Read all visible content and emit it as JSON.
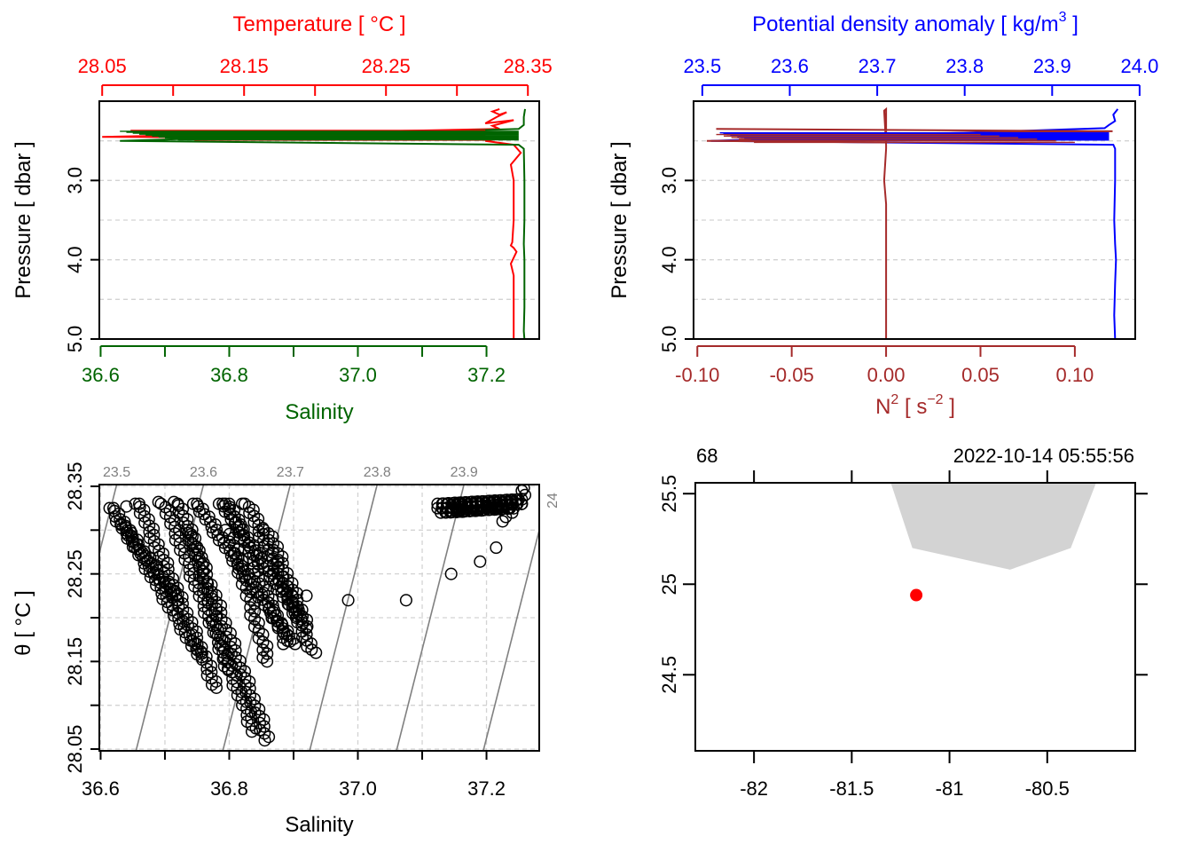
{
  "colors": {
    "temperature": "#ff0000",
    "salinity": "#006400",
    "density": "#0000ff",
    "n2": "#a52a2a",
    "isopycnal": "#808080",
    "coast": "#d3d3d3",
    "station": "#ff0000",
    "grid": "#d3d3d3"
  },
  "chart_data": [
    {
      "id": "profile-ts",
      "type": "line",
      "ylabel": "Pressure [ dbar ]",
      "ylim": [
        5.0,
        2.0
      ],
      "yticks": [
        3.0,
        4.0,
        5.0
      ],
      "ytick_labels": [
        "3.0",
        "4.0",
        "5.0"
      ],
      "ygrid": [
        2.5,
        3.0,
        3.5,
        4.0,
        4.5,
        5.0
      ],
      "top_axis": {
        "label": "Temperature [ °C ]",
        "ticks": [
          28.05,
          28.15,
          28.25,
          28.35
        ],
        "tick_labels": [
          "28.05",
          "28.15",
          "28.25",
          "28.35"
        ],
        "minor_ticks": [
          28.1,
          28.2,
          28.3
        ],
        "range": [
          28.048,
          28.358
        ]
      },
      "bottom_axis": {
        "label": "Salinity",
        "ticks": [
          36.6,
          36.8,
          37.0,
          37.2
        ],
        "tick_labels": [
          "36.6",
          "36.8",
          "37.0",
          "37.2"
        ],
        "minor_ticks": [
          36.7,
          36.9,
          37.1
        ],
        "range": [
          36.598,
          37.282
        ]
      },
      "series": [
        {
          "role": "temperature",
          "x": [
            28.33,
            28.325,
            28.33,
            28.335,
            28.328,
            28.32,
            28.34,
            28.325,
            28.33,
            28.05,
            28.33,
            28.32,
            28.34,
            28.345,
            28.338,
            28.34,
            28.34,
            28.339,
            28.338,
            28.34,
            28.342,
            28.338,
            28.34,
            28.34,
            28.34,
            28.34,
            28.34,
            28.34
          ],
          "y": [
            2.1,
            2.13,
            2.17,
            2.14,
            2.2,
            2.28,
            2.24,
            2.31,
            2.35,
            2.45,
            2.47,
            2.5,
            2.55,
            2.65,
            2.8,
            3.0,
            3.5,
            3.78,
            3.82,
            3.85,
            3.9,
            4.05,
            4.2,
            4.5,
            4.7,
            4.85,
            4.95,
            5.0
          ]
        },
        {
          "role": "salinity",
          "x": [
            37.26,
            37.258,
            37.258,
            37.25,
            36.63,
            37.25,
            37.258,
            37.259,
            37.259,
            37.258,
            37.259,
            37.259,
            37.259,
            37.258,
            37.259
          ],
          "y": [
            2.1,
            2.2,
            2.3,
            2.35,
            2.5,
            2.55,
            2.6,
            3.0,
            3.5,
            3.8,
            4.0,
            4.3,
            4.6,
            4.9,
            5.0
          ]
        }
      ]
    },
    {
      "id": "profile-density",
      "type": "line",
      "ylabel": "Pressure [ dbar ]",
      "ylim": [
        5.0,
        2.0
      ],
      "yticks": [
        3.0,
        4.0,
        5.0
      ],
      "ytick_labels": [
        "3.0",
        "4.0",
        "5.0"
      ],
      "ygrid": [
        2.5,
        3.0,
        3.5,
        4.0,
        4.5,
        5.0
      ],
      "top_axis": {
        "label_main": "Potential density anomaly [ kg/m",
        "label_sup": "3",
        "label_end": " ]",
        "ticks": [
          23.5,
          23.6,
          23.7,
          23.8,
          23.9,
          24.0
        ],
        "tick_labels": [
          "23.5",
          "23.6",
          "23.7",
          "23.8",
          "23.9",
          "24.0"
        ],
        "range": [
          23.49,
          23.995
        ]
      },
      "bottom_axis": {
        "label_main": "N",
        "label_sup": "2",
        "label_mid": " [ s",
        "label_sup2": "−2",
        "label_end": " ]",
        "ticks": [
          -0.1,
          -0.05,
          0.0,
          0.05,
          0.1
        ],
        "tick_labels": [
          "-0.10",
          "-0.05",
          "0.00",
          "0.05",
          "0.10"
        ],
        "range": [
          -0.102,
          0.132
        ]
      },
      "series": [
        {
          "role": "density",
          "x": [
            23.975,
            23.97,
            23.972,
            23.965,
            23.96,
            23.51,
            23.97,
            23.972,
            23.972,
            23.971,
            23.972,
            23.973,
            23.972,
            23.971,
            23.972
          ],
          "y": [
            2.1,
            2.17,
            2.25,
            2.3,
            2.34,
            2.5,
            2.55,
            2.6,
            3.0,
            3.5,
            3.8,
            4.0,
            4.3,
            4.7,
            5.0
          ]
        },
        {
          "role": "n2",
          "x": [
            -0.09,
            0.12,
            -0.08,
            0.11,
            -0.095,
            0.0,
            0.0,
            -0.001,
            0.0,
            0.0,
            -0.001,
            0.0,
            0.0,
            0.0,
            0.0,
            0.0,
            0.0
          ],
          "y": [
            2.35,
            2.38,
            2.43,
            2.46,
            2.5,
            2.52,
            2.1,
            2.12,
            2.55,
            2.6,
            3.0,
            3.3,
            3.6,
            4.0,
            4.4,
            4.8,
            5.0
          ]
        }
      ]
    },
    {
      "id": "ts-diagram",
      "type": "scatter",
      "xlabel": "Salinity",
      "ylabel_main": "θ",
      "ylabel_unit": " [ °C ]",
      "xlim": [
        36.598,
        37.282
      ],
      "ylim": [
        28.048,
        28.352
      ],
      "xticks": [
        36.6,
        36.8,
        37.0,
        37.2
      ],
      "xtick_labels": [
        "36.6",
        "36.8",
        "37.0",
        "37.2"
      ],
      "xminor": [
        36.7,
        36.9,
        37.1
      ],
      "yticks": [
        28.05,
        28.15,
        28.25,
        28.35
      ],
      "ytick_labels": [
        "28.05",
        "28.15",
        "28.25",
        "28.35"
      ],
      "yminor": [
        28.1,
        28.2,
        28.3
      ],
      "xgrid": [
        36.6,
        36.7,
        36.8,
        36.9,
        37.0,
        37.1,
        37.2
      ],
      "ygrid": [
        28.05,
        28.1,
        28.15,
        28.2,
        28.25,
        28.3,
        28.35
      ],
      "isopycnals": [
        {
          "label": "23.5",
          "s_bottom": 36.52,
          "s_top": 36.625
        },
        {
          "label": "23.6",
          "s_bottom": 36.655,
          "s_top": 36.76
        },
        {
          "label": "23.7",
          "s_bottom": 36.79,
          "s_top": 36.895
        },
        {
          "label": "23.8",
          "s_bottom": 36.925,
          "s_top": 37.03
        },
        {
          "label": "23.9",
          "s_bottom": 37.06,
          "s_top": 37.165
        },
        {
          "label": "24",
          "s_bottom": 37.195,
          "s_top": 37.3
        }
      ],
      "bands": [
        {
          "s0": 36.62,
          "t0": 28.325,
          "s1": 36.755,
          "t1": 28.155,
          "n": 55
        },
        {
          "s0": 36.66,
          "t0": 28.33,
          "s1": 36.78,
          "t1": 28.12,
          "n": 60
        },
        {
          "s0": 36.7,
          "t0": 28.33,
          "s1": 36.84,
          "t1": 28.07,
          "n": 70
        },
        {
          "s0": 36.72,
          "t0": 28.332,
          "s1": 36.86,
          "t1": 28.06,
          "n": 70
        },
        {
          "s0": 36.75,
          "t0": 28.33,
          "s1": 36.9,
          "t1": 28.17,
          "n": 55
        },
        {
          "s0": 36.79,
          "t0": 28.33,
          "s1": 36.91,
          "t1": 28.2,
          "n": 45
        },
        {
          "s0": 36.8,
          "t0": 28.33,
          "s1": 36.89,
          "t1": 28.17,
          "n": 45
        },
        {
          "s0": 36.83,
          "t0": 28.33,
          "s1": 36.93,
          "t1": 28.16,
          "n": 50
        },
        {
          "s0": 36.63,
          "t0": 28.31,
          "s1": 36.72,
          "t1": 28.22,
          "n": 35
        },
        {
          "s0": 36.74,
          "t0": 28.3,
          "s1": 36.8,
          "t1": 28.14,
          "n": 35
        },
        {
          "s0": 36.8,
          "t0": 28.3,
          "s1": 36.86,
          "t1": 28.15,
          "n": 35
        },
        {
          "s0": 36.86,
          "t0": 28.3,
          "s1": 36.92,
          "t1": 28.19,
          "n": 30
        },
        {
          "s0": 37.13,
          "t0": 28.325,
          "s1": 37.255,
          "t1": 28.33,
          "n": 60
        },
        {
          "s0": 37.13,
          "t0": 28.33,
          "s1": 37.25,
          "t1": 28.335,
          "n": 50
        },
        {
          "s0": 37.135,
          "t0": 28.32,
          "s1": 37.24,
          "t1": 28.325,
          "n": 40
        }
      ],
      "points": [
        {
          "s": 36.62,
          "t": 28.325
        },
        {
          "s": 36.64,
          "t": 28.327
        },
        {
          "s": 36.66,
          "t": 28.33
        },
        {
          "s": 36.69,
          "t": 28.332
        },
        {
          "s": 36.72,
          "t": 28.33
        },
        {
          "s": 36.75,
          "t": 28.33
        },
        {
          "s": 36.79,
          "t": 28.33
        },
        {
          "s": 36.8,
          "t": 28.33
        },
        {
          "s": 36.82,
          "t": 28.33
        },
        {
          "s": 36.92,
          "t": 28.225
        },
        {
          "s": 36.985,
          "t": 28.22
        },
        {
          "s": 37.075,
          "t": 28.22
        },
        {
          "s": 37.145,
          "t": 28.25
        },
        {
          "s": 37.19,
          "t": 28.264
        },
        {
          "s": 37.215,
          "t": 28.28
        },
        {
          "s": 37.225,
          "t": 28.31
        },
        {
          "s": 37.23,
          "t": 28.315
        },
        {
          "s": 37.24,
          "t": 28.32
        },
        {
          "s": 37.25,
          "t": 28.335
        },
        {
          "s": 37.255,
          "t": 28.345
        },
        {
          "s": 37.258,
          "t": 28.348
        },
        {
          "s": 37.26,
          "t": 28.34
        }
      ]
    },
    {
      "id": "map",
      "type": "scatter",
      "xlim": [
        -82.3,
        -80.05
      ],
      "ylim": [
        24.08,
        25.56
      ],
      "xticks": [
        -82,
        -81.5,
        -81,
        -80.5
      ],
      "xtick_labels": [
        "-82",
        "-81.5",
        "-81",
        "-80.5"
      ],
      "yticks": [
        24.5,
        25,
        25.5
      ],
      "ytick_labels": [
        "24.5",
        "25",
        "25.5"
      ],
      "top_left_label": "68",
      "top_right_label": "2022-10-14 05:55:56",
      "land": {
        "lon": [
          -81.3,
          -81.19,
          -80.69,
          -80.38,
          -80.25
        ],
        "lat": [
          25.56,
          25.2,
          25.08,
          25.2,
          25.56
        ]
      },
      "station": {
        "lon": -81.17,
        "lat": 24.94
      }
    }
  ]
}
